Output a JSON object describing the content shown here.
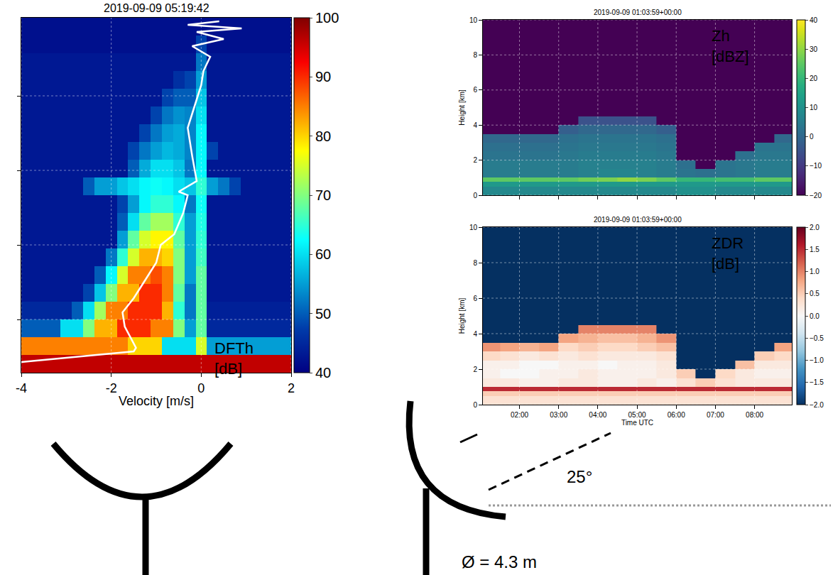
{
  "chart_data": [
    {
      "type": "heatmap",
      "title": "2019-09-09 05:19:42",
      "x_label": "Velocity [m/s]",
      "annotation": [
        "DFTh",
        "[dB]"
      ],
      "x": [
        -4,
        -3.75,
        -3.5,
        -3.25,
        -3,
        -2.75,
        -2.5,
        -2.25,
        -2,
        -1.75,
        -1.5,
        -1.25,
        -1,
        -0.75,
        -0.5,
        -0.25,
        0,
        0.25,
        0.5,
        0.75,
        1,
        1.25,
        1.5,
        1.75,
        2
      ],
      "y": [
        0.125,
        0.375,
        0.625,
        0.875,
        1.125,
        1.375,
        1.625,
        1.875,
        2.125,
        2.375,
        2.625,
        2.875,
        3.125,
        3.375,
        3.625,
        3.875,
        4.125,
        4.375,
        4.625,
        4.875
      ],
      "z": [
        [
          96,
          96,
          96,
          96,
          96,
          96,
          96,
          96,
          96,
          96,
          96,
          96,
          96,
          96,
          96,
          96,
          96,
          96,
          96,
          96,
          96,
          96,
          96,
          96,
          96
        ],
        [
          85,
          85,
          85,
          85,
          85,
          85,
          85,
          85,
          85,
          85,
          80,
          80,
          80,
          60,
          60,
          60,
          75,
          55,
          55,
          55,
          55,
          55,
          55,
          55,
          55
        ],
        [
          50,
          50,
          50,
          50,
          60,
          60,
          70,
          82,
          82,
          90,
          90,
          90,
          85,
          85,
          70,
          55,
          68,
          45,
          45,
          45,
          45,
          45,
          45,
          45,
          45
        ],
        [
          45,
          45,
          45,
          45,
          45,
          50,
          60,
          72,
          85,
          85,
          90,
          90,
          90,
          82,
          65,
          52,
          68,
          44,
          44,
          44,
          44,
          44,
          44,
          44,
          44
        ],
        [
          43,
          43,
          43,
          43,
          43,
          43,
          48,
          58,
          70,
          82,
          82,
          90,
          90,
          85,
          68,
          52,
          68,
          43,
          43,
          43,
          43,
          43,
          43,
          43,
          43
        ],
        [
          43,
          43,
          43,
          43,
          43,
          43,
          43,
          50,
          62,
          75,
          85,
          85,
          88,
          85,
          70,
          55,
          68,
          43,
          43,
          43,
          43,
          43,
          43,
          43,
          43
        ],
        [
          43,
          43,
          43,
          43,
          43,
          43,
          43,
          43,
          52,
          65,
          75,
          82,
          82,
          80,
          70,
          55,
          66,
          43,
          43,
          43,
          43,
          43,
          43,
          43,
          43
        ],
        [
          43,
          43,
          43,
          43,
          43,
          43,
          43,
          43,
          43,
          55,
          68,
          75,
          78,
          78,
          68,
          55,
          65,
          43,
          43,
          43,
          43,
          43,
          43,
          43,
          43
        ],
        [
          43,
          43,
          43,
          43,
          43,
          43,
          43,
          43,
          43,
          50,
          60,
          68,
          72,
          72,
          65,
          55,
          64,
          43,
          43,
          43,
          43,
          43,
          43,
          43,
          43
        ],
        [
          43,
          43,
          43,
          43,
          43,
          43,
          43,
          43,
          43,
          48,
          55,
          62,
          65,
          65,
          62,
          52,
          63,
          43,
          43,
          43,
          43,
          43,
          43,
          43,
          43
        ],
        [
          43,
          43,
          43,
          43,
          43,
          43,
          50,
          55,
          55,
          58,
          60,
          62,
          63,
          62,
          60,
          58,
          65,
          55,
          52,
          48,
          43,
          43,
          43,
          43,
          43
        ],
        [
          43,
          43,
          43,
          43,
          43,
          43,
          43,
          43,
          43,
          43,
          50,
          56,
          60,
          60,
          58,
          52,
          62,
          43,
          43,
          43,
          43,
          43,
          43,
          43,
          43
        ],
        [
          43,
          43,
          43,
          43,
          43,
          43,
          43,
          43,
          43,
          43,
          48,
          52,
          55,
          57,
          56,
          53,
          62,
          48,
          43,
          43,
          43,
          43,
          43,
          43,
          43
        ],
        [
          43,
          43,
          43,
          43,
          43,
          43,
          43,
          43,
          43,
          43,
          43,
          48,
          52,
          55,
          56,
          53,
          62,
          43,
          43,
          43,
          43,
          43,
          43,
          43,
          43
        ],
        [
          43,
          43,
          43,
          43,
          43,
          43,
          43,
          43,
          43,
          43,
          43,
          43,
          48,
          52,
          54,
          53,
          60,
          43,
          43,
          43,
          43,
          43,
          43,
          43,
          43
        ],
        [
          43,
          43,
          43,
          43,
          43,
          43,
          43,
          43,
          43,
          43,
          43,
          43,
          43,
          48,
          50,
          50,
          58,
          43,
          43,
          43,
          43,
          43,
          43,
          43,
          43
        ],
        [
          43,
          43,
          43,
          43,
          43,
          43,
          43,
          43,
          43,
          43,
          43,
          43,
          43,
          43,
          46,
          48,
          55,
          43,
          43,
          43,
          43,
          43,
          43,
          43,
          43
        ],
        [
          43,
          43,
          43,
          43,
          43,
          43,
          43,
          43,
          43,
          43,
          43,
          43,
          43,
          43,
          43,
          43,
          52,
          43,
          43,
          43,
          43,
          43,
          43,
          43,
          43
        ],
        [
          42,
          42,
          42,
          42,
          42,
          42,
          42,
          42,
          42,
          42,
          42,
          42,
          42,
          42,
          42,
          42,
          48,
          42,
          42,
          42,
          42,
          42,
          42,
          42,
          42
        ],
        [
          42,
          42,
          42,
          42,
          42,
          42,
          42,
          42,
          42,
          42,
          42,
          42,
          42,
          42,
          42,
          42,
          42,
          42,
          42,
          42,
          42,
          42,
          42,
          42,
          42
        ]
      ],
      "zlim": [
        40,
        100
      ],
      "zticks": [
        40,
        50,
        60,
        70,
        80,
        90,
        100
      ],
      "color": "Jet",
      "xlim": [
        -4,
        2
      ],
      "xticks": [
        -4,
        -2,
        0,
        2
      ],
      "ylim": [
        0,
        5
      ],
      "yticks": [
        0.75,
        1.8,
        2.85,
        3.9
      ],
      "tick_labels": "x",
      "grid": true,
      "series": [
        {
          "type": "line",
          "color": "#ffffff",
          "x": [
            -4,
            -1.5,
            -1.45,
            -1.7,
            -1.75,
            -1.5,
            -1.3,
            -1.0,
            -0.9,
            -0.6,
            -0.4,
            -0.3,
            -0.5,
            -0.1,
            -0.2,
            -0.3,
            -0.15,
            0.0,
            0.05,
            0.2,
            -0.2,
            0.5,
            -0.1,
            0.9,
            -0.3,
            0.4
          ],
          "y": [
            0.15,
            0.3,
            0.35,
            0.65,
            0.85,
            1.05,
            1.25,
            1.55,
            1.8,
            1.95,
            2.25,
            2.5,
            2.55,
            2.7,
            3.05,
            3.45,
            3.75,
            4.05,
            4.25,
            4.45,
            4.6,
            4.7,
            4.8,
            4.85,
            4.9,
            4.95
          ]
        }
      ]
    },
    {
      "type": "heatmap",
      "title": "2019-09-09 01:03:59+00:00",
      "y_label": "Height [km]",
      "annotation": [
        "Zh",
        "[dBZ]"
      ],
      "x_edges": [
        1.0,
        1.5,
        2.0,
        2.5,
        3.0,
        3.5,
        4.0,
        4.5,
        5.0,
        5.5,
        6.0,
        6.5,
        7.0,
        7.5,
        8.0,
        8.5,
        9.0
      ],
      "y_edges": [
        0,
        0.5,
        0.75,
        1.0,
        1.5,
        2.0,
        2.5,
        3.0,
        3.5,
        4.0,
        4.5,
        10
      ],
      "z": [
        [
          8,
          8,
          8,
          8,
          8,
          8,
          8,
          8,
          8,
          8,
          10,
          10,
          8,
          8,
          8,
          8
        ],
        [
          12,
          12,
          12,
          12,
          12,
          12,
          12,
          12,
          12,
          12,
          12,
          12,
          12,
          12,
          12,
          12
        ],
        [
          25,
          25,
          25,
          25,
          25,
          27,
          28,
          30,
          28,
          25,
          20,
          20,
          22,
          22,
          25,
          25
        ],
        [
          5,
          5,
          5,
          5,
          5,
          6,
          7,
          7,
          6,
          5,
          3,
          2,
          3,
          4,
          5,
          5
        ],
        [
          5,
          5,
          5,
          5,
          5,
          6,
          6,
          6,
          6,
          5,
          2,
          -20,
          3,
          4,
          5,
          5
        ],
        [
          3,
          3,
          3,
          3,
          4,
          5,
          5,
          5,
          5,
          4,
          -20,
          -20,
          -20,
          2,
          4,
          4
        ],
        [
          2,
          2,
          2,
          2,
          3,
          4,
          4,
          4,
          4,
          3,
          -20,
          -20,
          -20,
          -20,
          3,
          3
        ],
        [
          0,
          0,
          0,
          0,
          2,
          3,
          3,
          3,
          3,
          2,
          -20,
          -20,
          -20,
          -20,
          -20,
          0
        ],
        [
          -20,
          -20,
          -20,
          -20,
          -2,
          0,
          0,
          0,
          0,
          -2,
          -20,
          -20,
          -20,
          -20,
          -20,
          -20
        ],
        [
          -20,
          -20,
          -20,
          -20,
          -20,
          -5,
          -5,
          -5,
          -5,
          -20,
          -20,
          -20,
          -20,
          -20,
          -20,
          -20
        ],
        [
          -20,
          -20,
          -20,
          -20,
          -20,
          -20,
          -20,
          -20,
          -20,
          -20,
          -20,
          -20,
          -20,
          -20,
          -20,
          -20
        ]
      ],
      "zlim": [
        -20,
        40
      ],
      "zticks": [
        {
          "value": -20,
          "label": "−20"
        },
        {
          "value": -10,
          "label": "−10"
        },
        0,
        10,
        20,
        30,
        40
      ],
      "color": "Viridis",
      "xlim": [
        1.066,
        8.95
      ],
      "xticks": [
        2,
        3,
        4,
        5,
        6,
        7,
        8
      ],
      "ylim": [
        0,
        10
      ],
      "yticks": [
        0,
        2,
        4,
        6,
        8,
        10
      ],
      "tick_labels": "y",
      "grid": true
    },
    {
      "type": "heatmap",
      "title": "2019-09-09 01:03:59+00:00",
      "x_label": "Time UTC",
      "y_label": "Height [km]",
      "annotation": [
        "ZDR",
        "[dB]"
      ],
      "x_edges": [
        1.0,
        1.5,
        2.0,
        2.5,
        3.0,
        3.5,
        4.0,
        4.5,
        5.0,
        5.5,
        6.0,
        6.5,
        7.0,
        7.5,
        8.0,
        8.5,
        9.0
      ],
      "y_edges": [
        0,
        0.5,
        0.75,
        1.0,
        1.5,
        2.0,
        2.5,
        3.0,
        3.5,
        4.0,
        4.5,
        10
      ],
      "z": [
        [
          0.3,
          0.3,
          0.3,
          0.3,
          0.3,
          0.3,
          0.3,
          0.3,
          0.3,
          0.3,
          0.3,
          0.3,
          0.3,
          0.3,
          0.3,
          0.3
        ],
        [
          0.5,
          0.5,
          0.5,
          0.5,
          0.5,
          0.5,
          0.5,
          0.5,
          0.5,
          0.5,
          0.5,
          0.5,
          0.5,
          0.5,
          0.5,
          0.5
        ],
        [
          1.5,
          1.5,
          1.5,
          1.5,
          1.5,
          1.5,
          1.5,
          1.5,
          1.5,
          1.5,
          1.5,
          1.5,
          1.5,
          1.5,
          1.5,
          1.5
        ],
        [
          0.2,
          0.2,
          0.1,
          0.1,
          0.2,
          0.2,
          0.1,
          0.1,
          0.2,
          0.1,
          0.3,
          0.5,
          0.3,
          0.2,
          0.2,
          0.2
        ],
        [
          0.1,
          0.0,
          0.0,
          0.1,
          0.1,
          0.2,
          0.1,
          0.1,
          0.1,
          0.2,
          0.5,
          -2,
          0.4,
          0.2,
          0.1,
          0.1
        ],
        [
          0.1,
          0.1,
          0.0,
          0.0,
          0.1,
          0.1,
          0.0,
          0.1,
          0.1,
          0.2,
          -2,
          -2,
          -2,
          0.6,
          0.2,
          0.2
        ],
        [
          0.4,
          0.3,
          0.2,
          0.3,
          0.2,
          0.3,
          0.2,
          0.2,
          0.2,
          0.3,
          -2,
          -2,
          -2,
          -2,
          0.5,
          0.4
        ],
        [
          0.9,
          0.8,
          0.7,
          0.8,
          0.4,
          0.5,
          0.4,
          0.4,
          0.5,
          0.6,
          -2,
          -2,
          -2,
          -2,
          -2,
          0.8
        ],
        [
          -2,
          -2,
          -2,
          -2,
          0.8,
          0.7,
          0.6,
          0.6,
          0.7,
          0.9,
          -2,
          -2,
          -2,
          -2,
          -2,
          -2
        ],
        [
          -2,
          -2,
          -2,
          -2,
          -2,
          1.0,
          1.0,
          1.0,
          1.0,
          -2,
          -2,
          -2,
          -2,
          -2,
          -2,
          -2
        ],
        [
          -2,
          -2,
          -2,
          -2,
          -2,
          -2,
          -2,
          -2,
          -2,
          -2,
          -2,
          -2,
          -2,
          -2,
          -2,
          -2
        ]
      ],
      "zlim": [
        -2,
        2
      ],
      "zticks": [
        {
          "value": -2,
          "label": "−2.0"
        },
        {
          "value": -1.5,
          "label": "−1.5"
        },
        {
          "value": -1,
          "label": "−1.0"
        },
        {
          "value": -0.5,
          "label": "−0.5"
        },
        {
          "value": 0,
          "label": "0.0"
        },
        {
          "value": 0.5,
          "label": "0.5"
        },
        {
          "value": 1,
          "label": "1.0"
        },
        {
          "value": 1.5,
          "label": "1.5"
        },
        {
          "value": 2,
          "label": "2.0"
        }
      ],
      "color": "RdBu_r",
      "xlim": [
        1.066,
        8.95
      ],
      "xticks": [
        {
          "value": 2,
          "label": "02:00"
        },
        {
          "value": 3,
          "label": "03:00"
        },
        {
          "value": 4,
          "label": "04:00"
        },
        {
          "value": 5,
          "label": "05:00"
        },
        {
          "value": 6,
          "label": "06:00"
        },
        {
          "value": 7,
          "label": "07:00"
        },
        {
          "value": 8,
          "label": "08:00"
        }
      ],
      "ylim": [
        0,
        10
      ],
      "yticks": [
        0,
        2,
        4,
        6,
        8,
        10
      ],
      "grid": true
    }
  ],
  "diagram": {
    "angle_label": "25°",
    "diameter_label": "Ø = 4.3 m"
  }
}
